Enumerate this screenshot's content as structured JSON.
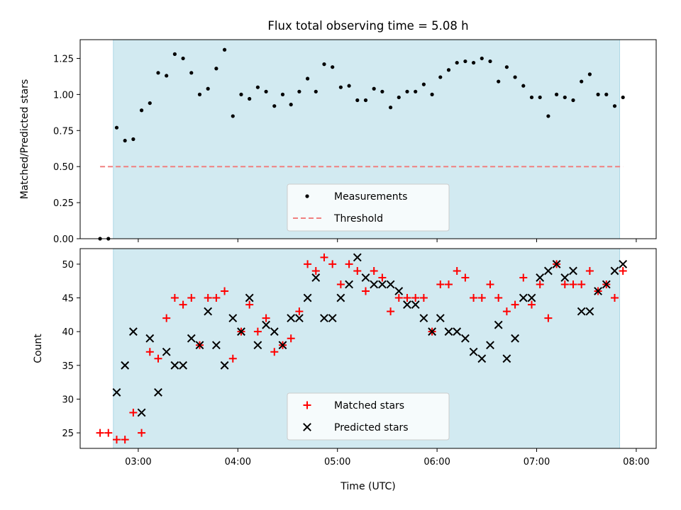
{
  "chart_data": [
    {
      "type": "scatter",
      "title": "Flux total observing time = 5.08 h",
      "xlabel": "",
      "ylabel": "Matched/Predicted stars",
      "ylim": [
        0,
        1.38
      ],
      "yticks": [
        0.0,
        0.25,
        0.5,
        0.75,
        1.0,
        1.25
      ],
      "ytick_labels": [
        "0.00",
        "0.25",
        "0.50",
        "0.75",
        "1.00",
        "1.25"
      ],
      "xlim": [
        "02:25",
        "08:12"
      ],
      "xticks": [
        "03:00",
        "04:00",
        "05:00",
        "06:00",
        "07:00",
        "08:00"
      ],
      "xtick_labels_shown": false,
      "shaded_region": [
        "02:45",
        "07:50"
      ],
      "shade_color": "#add8e6",
      "legend_location": "lower center",
      "series": [
        {
          "name": "Measurements",
          "kind": "points",
          "color": "#000000",
          "x": [
            "02:37",
            "02:42",
            "02:47",
            "02:52",
            "02:57",
            "03:02",
            "03:07",
            "03:12",
            "03:17",
            "03:22",
            "03:27",
            "03:32",
            "03:37",
            "03:42",
            "03:47",
            "03:52",
            "03:57",
            "04:02",
            "04:07",
            "04:12",
            "04:17",
            "04:22",
            "04:27",
            "04:32",
            "04:37",
            "04:42",
            "04:47",
            "04:52",
            "04:57",
            "05:02",
            "05:07",
            "05:12",
            "05:17",
            "05:22",
            "05:27",
            "05:32",
            "05:37",
            "05:42",
            "05:47",
            "05:52",
            "05:57",
            "06:02",
            "06:07",
            "06:12",
            "06:17",
            "06:22",
            "06:27",
            "06:32",
            "06:37",
            "06:42",
            "06:47",
            "06:52",
            "06:57",
            "07:02",
            "07:07",
            "07:12",
            "07:17",
            "07:22",
            "07:27",
            "07:32",
            "07:37",
            "07:42",
            "07:47",
            "07:52"
          ],
          "y": [
            0.0,
            0.0,
            0.77,
            0.68,
            0.69,
            0.89,
            0.94,
            1.15,
            1.13,
            1.28,
            1.25,
            1.15,
            1.0,
            1.04,
            1.18,
            1.31,
            0.85,
            1.0,
            0.97,
            1.05,
            1.02,
            0.92,
            1.0,
            0.93,
            1.02,
            1.11,
            1.02,
            1.21,
            1.19,
            1.05,
            1.06,
            0.96,
            0.96,
            1.04,
            1.02,
            0.91,
            0.98,
            1.02,
            1.02,
            1.07,
            1.0,
            1.12,
            1.17,
            1.22,
            1.23,
            1.22,
            1.25,
            1.23,
            1.09,
            1.19,
            1.12,
            1.06,
            0.98,
            0.98,
            0.85,
            1.0,
            0.98,
            0.96,
            1.09,
            1.14,
            1.0,
            1.0,
            0.92,
            0.98
          ]
        },
        {
          "name": "Threshold",
          "kind": "dashed-line",
          "color": "#f08080",
          "x": [
            "02:37",
            "07:52"
          ],
          "y": [
            0.5,
            0.5
          ]
        }
      ]
    },
    {
      "type": "scatter",
      "title": "",
      "xlabel": "Time (UTC)",
      "ylabel": "Count",
      "ylim": [
        22.7,
        52.3
      ],
      "yticks": [
        25,
        30,
        35,
        40,
        45,
        50
      ],
      "ytick_labels": [
        "25",
        "30",
        "35",
        "40",
        "45",
        "50"
      ],
      "xlim": [
        "02:25",
        "08:12"
      ],
      "xticks": [
        "03:00",
        "04:00",
        "05:00",
        "06:00",
        "07:00",
        "08:00"
      ],
      "xtick_labels": [
        "03:00",
        "04:00",
        "05:00",
        "06:00",
        "07:00",
        "08:00"
      ],
      "shaded_region": [
        "02:45",
        "07:50"
      ],
      "shade_color": "#add8e6",
      "legend_location": "lower center",
      "series": [
        {
          "name": "Matched stars",
          "kind": "plus",
          "color": "#ff0000",
          "x": [
            "02:37",
            "02:42",
            "02:47",
            "02:52",
            "02:57",
            "03:02",
            "03:07",
            "03:12",
            "03:17",
            "03:22",
            "03:27",
            "03:32",
            "03:37",
            "03:42",
            "03:47",
            "03:52",
            "03:57",
            "04:02",
            "04:07",
            "04:12",
            "04:17",
            "04:22",
            "04:27",
            "04:32",
            "04:37",
            "04:42",
            "04:47",
            "04:52",
            "04:57",
            "05:02",
            "05:07",
            "05:12",
            "05:17",
            "05:22",
            "05:27",
            "05:32",
            "05:37",
            "05:42",
            "05:47",
            "05:52",
            "05:57",
            "06:02",
            "06:07",
            "06:12",
            "06:17",
            "06:22",
            "06:27",
            "06:32",
            "06:37",
            "06:42",
            "06:47",
            "06:52",
            "06:57",
            "07:02",
            "07:07",
            "07:12",
            "07:17",
            "07:22",
            "07:27",
            "07:32",
            "07:37",
            "07:42",
            "07:47",
            "07:52"
          ],
          "y": [
            25,
            25,
            24,
            24,
            28,
            25,
            37,
            36,
            42,
            45,
            44,
            45,
            38,
            45,
            45,
            46,
            36,
            40,
            44,
            40,
            42,
            37,
            38,
            39,
            43,
            50,
            49,
            51,
            50,
            47,
            50,
            49,
            46,
            49,
            48,
            43,
            45,
            45,
            45,
            45,
            40,
            47,
            47,
            49,
            48,
            45,
            45,
            47,
            45,
            43,
            44,
            48,
            44,
            47,
            42,
            50,
            47,
            47,
            47,
            49,
            46,
            47,
            45,
            49
          ]
        },
        {
          "name": "Predicted stars",
          "kind": "x",
          "color": "#000000",
          "x": [
            "02:47",
            "02:52",
            "02:57",
            "03:02",
            "03:07",
            "03:12",
            "03:17",
            "03:22",
            "03:27",
            "03:32",
            "03:37",
            "03:42",
            "03:47",
            "03:52",
            "03:57",
            "04:02",
            "04:07",
            "04:12",
            "04:17",
            "04:22",
            "04:27",
            "04:32",
            "04:37",
            "04:42",
            "04:47",
            "04:52",
            "04:57",
            "05:02",
            "05:07",
            "05:12",
            "05:17",
            "05:22",
            "05:27",
            "05:32",
            "05:37",
            "05:42",
            "05:47",
            "05:52",
            "05:57",
            "06:02",
            "06:07",
            "06:12",
            "06:17",
            "06:22",
            "06:27",
            "06:32",
            "06:37",
            "06:42",
            "06:47",
            "06:52",
            "06:57",
            "07:02",
            "07:07",
            "07:12",
            "07:17",
            "07:22",
            "07:27",
            "07:32",
            "07:37",
            "07:42",
            "07:47",
            "07:52"
          ],
          "y": [
            31,
            35,
            40,
            28,
            39,
            31,
            37,
            35,
            35,
            39,
            38,
            43,
            38,
            35,
            42,
            40,
            45,
            38,
            41,
            40,
            38,
            42,
            42,
            45,
            48,
            42,
            42,
            45,
            47,
            51,
            48,
            47,
            47,
            47,
            46,
            44,
            44,
            42,
            40,
            42,
            40,
            40,
            39,
            37,
            36,
            38,
            41,
            36,
            39,
            45,
            45,
            48,
            49,
            50,
            48,
            49,
            43,
            43,
            46,
            47,
            49,
            50
          ]
        }
      ]
    }
  ]
}
